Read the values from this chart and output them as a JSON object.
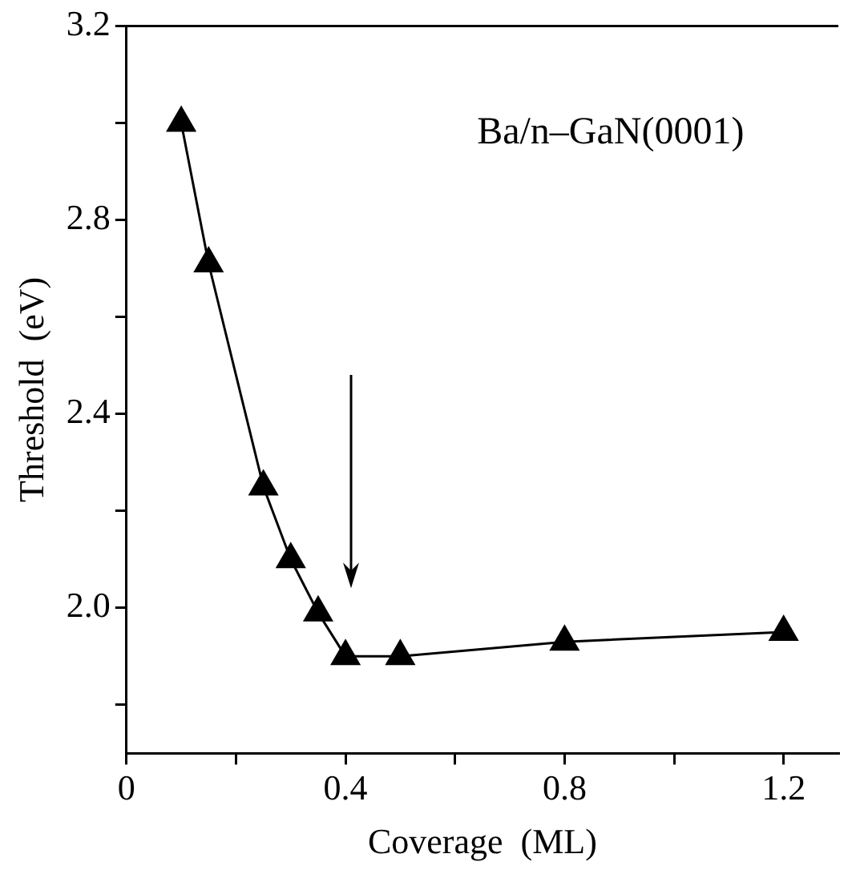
{
  "chart_data": {
    "type": "line",
    "xlabel": "Coverage  (ML)",
    "ylabel": "Threshold  (eV)",
    "annotations": [
      "Ba/n–GaN(0001)"
    ],
    "x": [
      0.1,
      0.15,
      0.25,
      0.3,
      0.35,
      0.4,
      0.5,
      0.8,
      1.2
    ],
    "series": [
      {
        "color": "#000000",
        "values": [
          3.0,
          2.71,
          2.25,
          2.1,
          1.99,
          1.9,
          1.9,
          1.93,
          1.95
        ]
      }
    ],
    "xlim": [
      0,
      1.3
    ],
    "ylim": [
      1.7,
      3.2
    ],
    "xticks": [
      0,
      {
        "value": 0.2,
        "label": null
      },
      0.4,
      {
        "value": 0.6,
        "label": null
      },
      0.8,
      {
        "value": 1.0,
        "label": null
      },
      1.2
    ],
    "yticks": [
      {
        "value": 1.8,
        "label": null
      },
      {
        "value": 2.0,
        "label": "2.0"
      },
      {
        "value": 2.2,
        "label": null
      },
      2.4,
      {
        "value": 2.6,
        "label": null
      },
      2.8,
      {
        "value": 3.0,
        "label": null
      },
      3.2
    ],
    "marker": "triangle",
    "line_style": "solid",
    "grid": false,
    "legend": false
  }
}
